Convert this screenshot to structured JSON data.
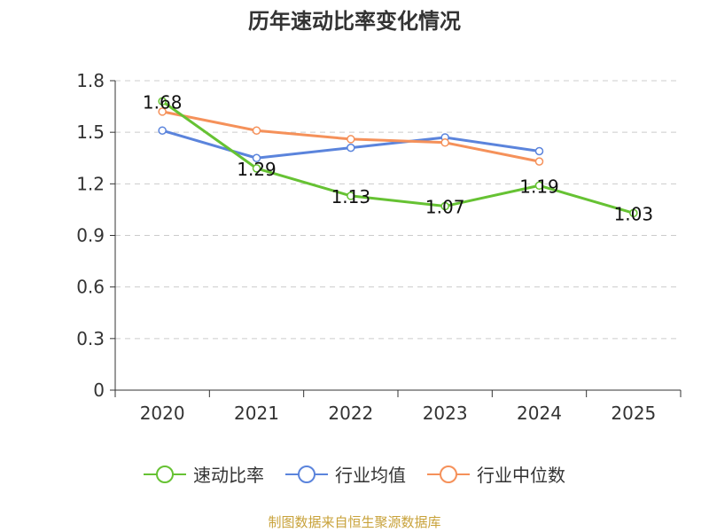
{
  "chart_data": {
    "type": "line",
    "title": "历年速动比率变化情况",
    "categories": [
      "2020",
      "2021",
      "2022",
      "2023",
      "2024",
      "2025"
    ],
    "y_ticks": [
      "0",
      "0.3",
      "0.6",
      "0.9",
      "1.2",
      "1.5",
      "1.8"
    ],
    "ylim": [
      0,
      1.8
    ],
    "grid": true,
    "legend_position": "bottom",
    "series": [
      {
        "name": "速动比率",
        "color": "#66c233",
        "values": [
          1.68,
          1.29,
          1.13,
          1.07,
          1.19,
          1.03
        ],
        "labels": [
          "1.68",
          "1.29",
          "1.13",
          "1.07",
          "1.19",
          "1.03"
        ]
      },
      {
        "name": "行业均值",
        "color": "#5b84dc",
        "values": [
          1.51,
          1.35,
          1.41,
          1.47,
          1.39,
          null
        ]
      },
      {
        "name": "行业中位数",
        "color": "#f5915a",
        "values": [
          1.62,
          1.51,
          1.46,
          1.44,
          1.33,
          null
        ]
      }
    ]
  },
  "footer": {
    "source": "制图数据来自恒生聚源数据库"
  }
}
